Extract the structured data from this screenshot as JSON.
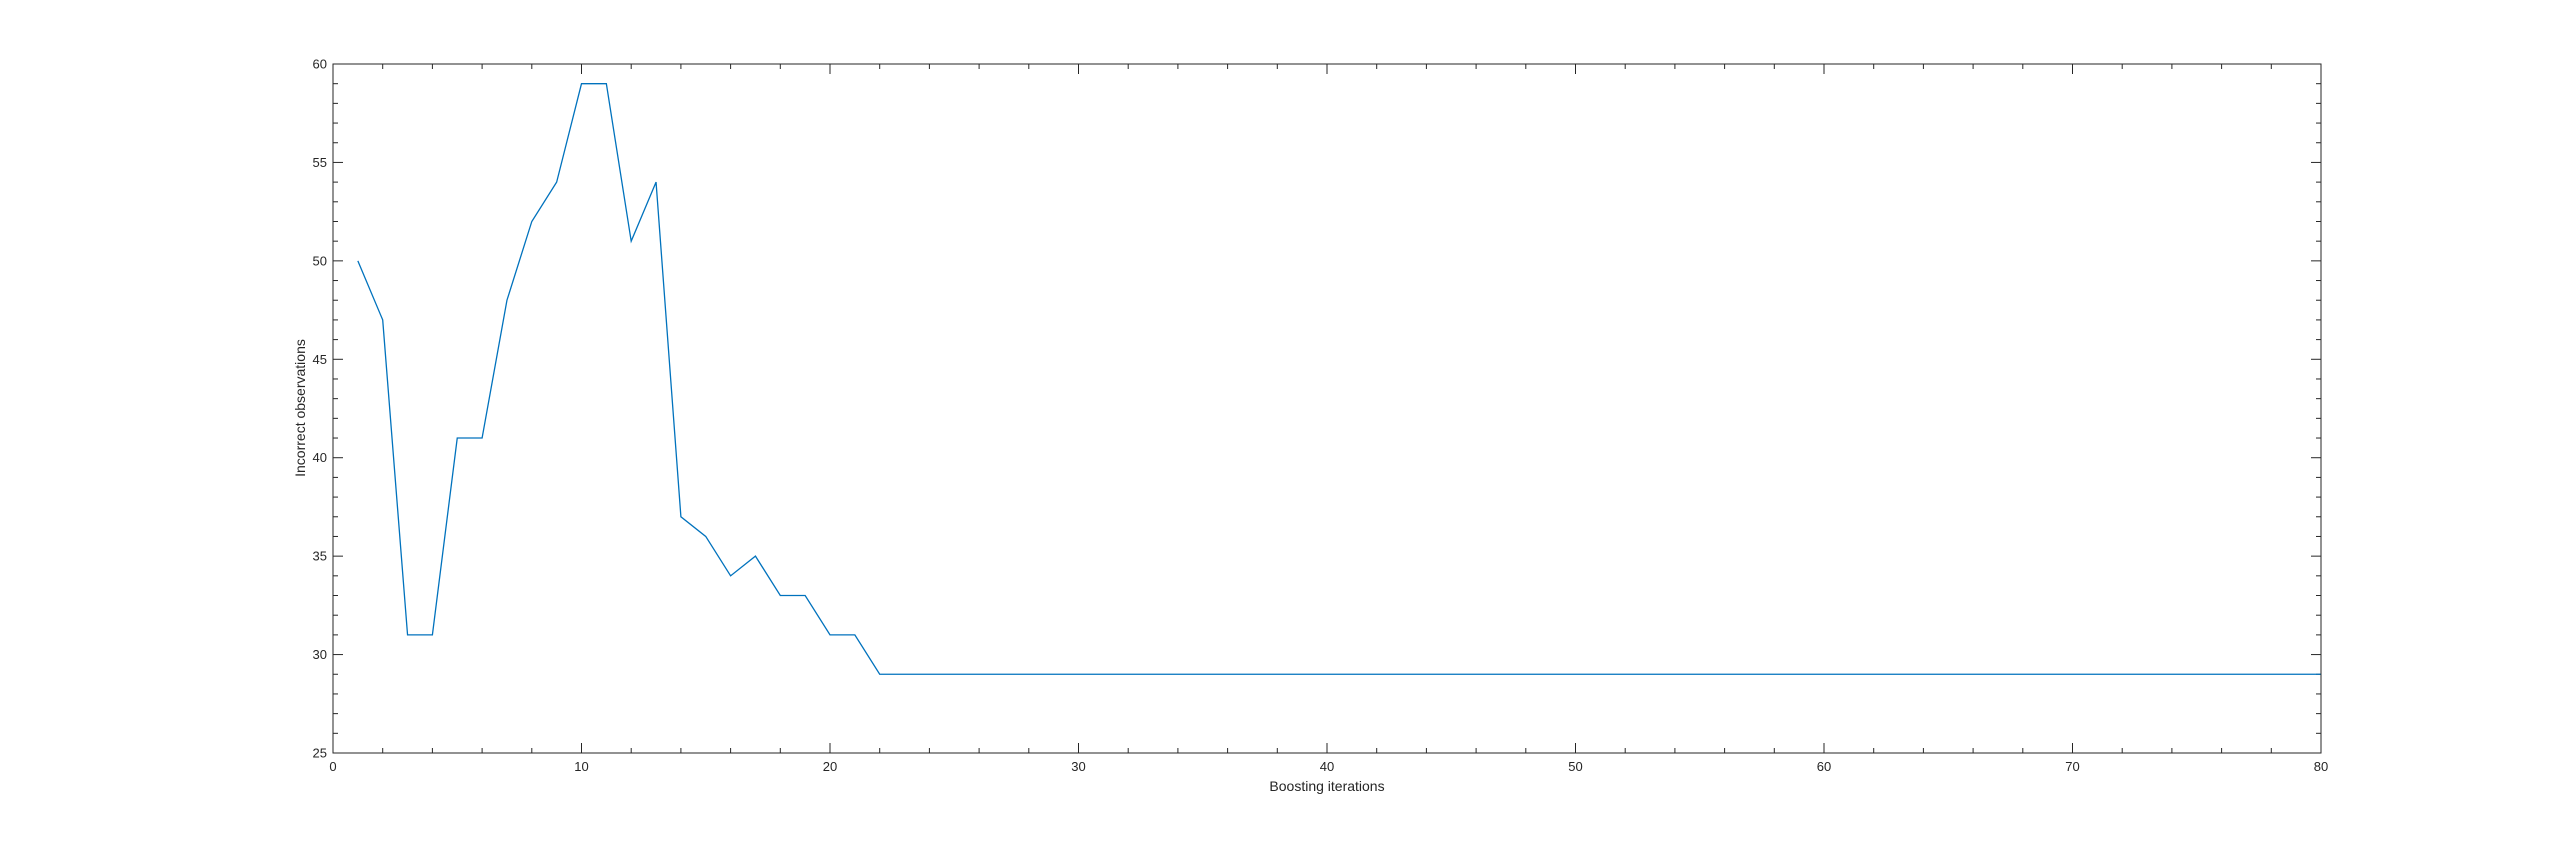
{
  "chart_data": {
    "type": "line",
    "title": "",
    "xlabel": "Boosting iterations",
    "ylabel": "Incorrect observations",
    "xlim": [
      0,
      80
    ],
    "ylim": [
      25,
      60
    ],
    "xticks": [
      0,
      10,
      20,
      30,
      40,
      50,
      60,
      70,
      80
    ],
    "yticks": [
      25,
      30,
      35,
      40,
      45,
      50,
      55,
      60
    ],
    "x_minor_step": 2,
    "y_minor_step": 1,
    "grid": false,
    "box": true,
    "series": [
      {
        "color": "#0072BD",
        "x": [
          1,
          2,
          3,
          4,
          5,
          6,
          7,
          8,
          9,
          10,
          11,
          12,
          13,
          14,
          15,
          16,
          17,
          18,
          19,
          20,
          21,
          22,
          23,
          24,
          25,
          26,
          27,
          28,
          29,
          30,
          31,
          32,
          33,
          34,
          35,
          36,
          37,
          38,
          39,
          40,
          41,
          42,
          43,
          44,
          45,
          46,
          47,
          48,
          49,
          50,
          51,
          52,
          53,
          54,
          55,
          56,
          57,
          58,
          59,
          60,
          61,
          62,
          63,
          64,
          65,
          66,
          67,
          68,
          69,
          70,
          71,
          72,
          73,
          74,
          75,
          76,
          77,
          78,
          79,
          80
        ],
        "y": [
          50,
          47,
          31,
          31,
          41,
          41,
          48,
          52,
          54,
          59,
          59,
          51,
          54,
          37,
          36,
          34,
          35,
          33,
          33,
          31,
          31,
          29,
          29,
          29,
          29,
          29,
          29,
          29,
          29,
          29,
          29,
          29,
          29,
          29,
          29,
          29,
          29,
          29,
          29,
          29,
          29,
          29,
          29,
          29,
          29,
          29,
          29,
          29,
          29,
          29,
          29,
          29,
          29,
          29,
          29,
          29,
          29,
          29,
          29,
          29,
          29,
          29,
          29,
          29,
          29,
          29,
          29,
          29,
          29,
          29,
          29,
          29,
          29,
          29,
          29,
          29,
          29,
          29,
          29,
          29
        ]
      }
    ]
  }
}
